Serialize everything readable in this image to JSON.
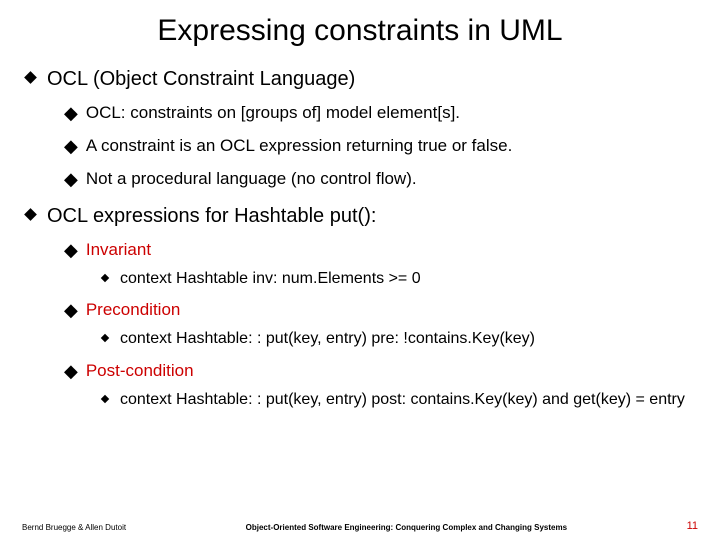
{
  "title": "Expressing constraints in UML",
  "colors": {
    "accent": "#cc0000",
    "text": "#000000",
    "background": "#ffffff"
  },
  "bullets": [
    {
      "text": "OCL (Object Constraint Language)",
      "sub": [
        {
          "text": "OCL: constraints on [groups of] model element[s]."
        },
        {
          "text": "A constraint is an OCL expression returning true or false."
        },
        {
          "text": "Not a procedural language (no control flow)."
        }
      ]
    },
    {
      "text": "OCL expressions for Hashtable put():",
      "sub": [
        {
          "text": "Invariant",
          "red": true,
          "sub": [
            {
              "text": "context Hashtable inv: num.Elements >= 0"
            }
          ]
        },
        {
          "text": "Precondition",
          "red": true,
          "sub": [
            {
              "text": "context Hashtable: : put(key, entry) pre: !contains.Key(key)"
            }
          ]
        },
        {
          "text": "Post-condition",
          "red": true,
          "sub": [
            {
              "text": "context Hashtable: : put(key, entry) post: contains.Key(key) and get(key) = entry"
            }
          ]
        }
      ]
    }
  ],
  "footer": {
    "left": "Bernd Bruegge & Allen Dutoit",
    "center": "Object-Oriented Software Engineering: Conquering Complex and Changing Systems",
    "page": "11"
  }
}
